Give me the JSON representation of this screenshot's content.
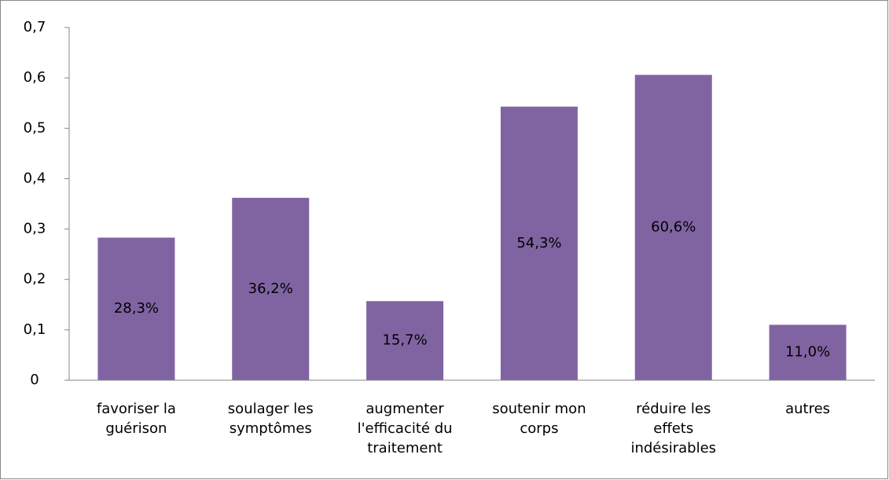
{
  "chart_data": {
    "type": "bar",
    "categories": [
      "favoriser la guérison",
      "soulager les symptômes",
      "augmenter l'efficacité du traitement",
      "soutenir mon corps",
      "réduire les effets indésirables",
      "autres"
    ],
    "values": [
      0.283,
      0.362,
      0.157,
      0.543,
      0.606,
      0.11
    ],
    "value_labels": [
      "28,3%",
      "36,2%",
      "15,7%",
      "54,3%",
      "60,6%",
      "11,0%"
    ],
    "color": "#8064a2",
    "ylim": [
      0,
      0.7
    ],
    "yticks": [
      0,
      {
        "value": 0.1,
        "label": "0,1"
      },
      {
        "value": 0.2,
        "label": "0,2"
      },
      {
        "value": 0.3,
        "label": "0,3"
      },
      {
        "value": 0.4,
        "label": "0,4"
      },
      {
        "value": 0.5,
        "label": "0,5"
      },
      {
        "value": 0.6,
        "label": "0,6"
      },
      {
        "value": 0.7,
        "label": "0,7"
      }
    ],
    "grid": false
  }
}
